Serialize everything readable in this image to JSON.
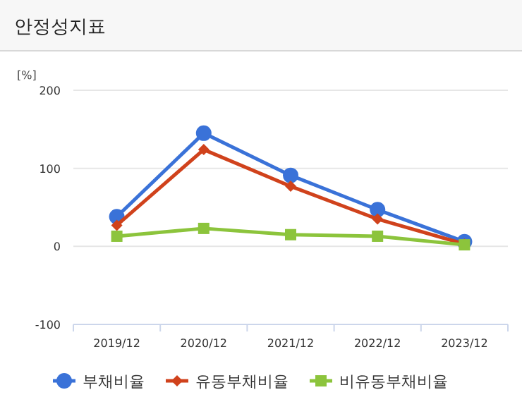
{
  "chart_data": {
    "type": "line",
    "title": "안정성지표",
    "ylabel": "[%]",
    "categories": [
      "2019/12",
      "2020/12",
      "2021/12",
      "2022/12",
      "2023/12"
    ],
    "series": [
      {
        "name": "부채비율",
        "color": "#3a72d8",
        "marker": "circle",
        "values": [
          38,
          145,
          91,
          47,
          6
        ]
      },
      {
        "name": "유동부채비율",
        "color": "#d0421c",
        "marker": "diamond",
        "values": [
          27,
          124,
          77,
          35,
          3
        ]
      },
      {
        "name": "비유동부채비율",
        "color": "#8cc43c",
        "marker": "square",
        "values": [
          13,
          23,
          15,
          13,
          2
        ]
      }
    ],
    "ylim": [
      -100,
      200
    ],
    "yticks": [
      -100,
      0,
      100,
      200
    ],
    "grid": "y",
    "legend": "bottom",
    "line_style": "solid"
  }
}
